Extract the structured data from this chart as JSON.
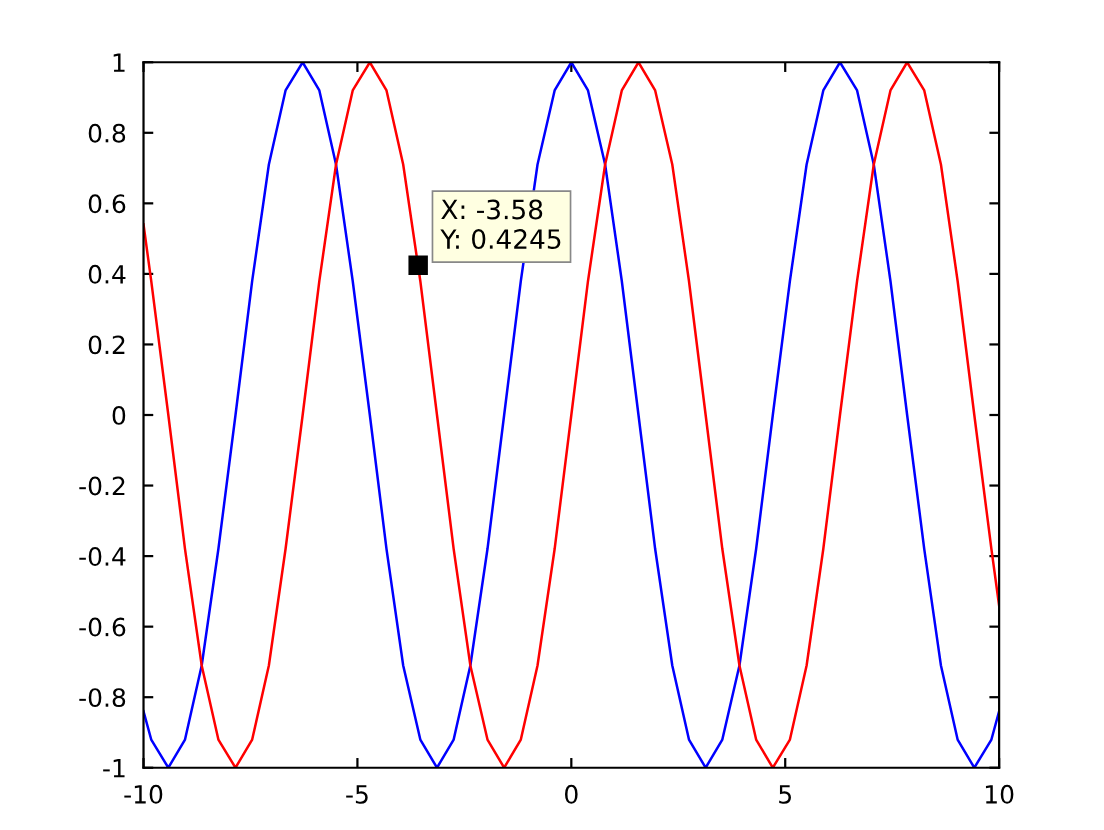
{
  "chart_data": {
    "type": "line",
    "x": [
      -10,
      -9.82,
      -9.42,
      -9.03,
      -8.64,
      -8.25,
      -7.85,
      -7.46,
      -7.07,
      -6.68,
      -6.28,
      -5.89,
      -5.5,
      -5.11,
      -4.71,
      -4.32,
      -3.93,
      -3.53,
      -3.14,
      -2.75,
      -2.36,
      -1.96,
      -1.57,
      -1.18,
      -0.79,
      -0.39,
      0,
      0.39,
      0.79,
      1.18,
      1.57,
      1.96,
      2.36,
      2.75,
      3.14,
      3.53,
      3.93,
      4.32,
      4.71,
      5.11,
      5.5,
      5.89,
      6.28,
      6.68,
      7.07,
      7.46,
      7.85,
      8.25,
      8.64,
      9.03,
      9.42,
      9.82,
      10
    ],
    "series": [
      {
        "color": "#0000ff",
        "values": [
          -0.84,
          -0.92,
          -1,
          -0.92,
          -0.71,
          -0.38,
          0,
          0.38,
          0.71,
          0.92,
          1,
          0.92,
          0.71,
          0.38,
          0,
          -0.38,
          -0.71,
          -0.92,
          -1,
          -0.92,
          -0.71,
          -0.38,
          0,
          0.38,
          0.71,
          0.92,
          1,
          0.92,
          0.71,
          0.38,
          0,
          -0.38,
          -0.71,
          -0.92,
          -1,
          -0.92,
          -0.71,
          -0.38,
          0,
          0.38,
          0.71,
          0.92,
          1,
          0.92,
          0.71,
          0.38,
          0,
          -0.38,
          -0.71,
          -0.92,
          -1,
          -0.92,
          -0.84
        ]
      },
      {
        "color": "#ff0000",
        "values": [
          0.54,
          0.38,
          0,
          -0.38,
          -0.71,
          -0.92,
          -1,
          -0.92,
          -0.71,
          -0.38,
          0,
          0.38,
          0.71,
          0.92,
          1,
          0.92,
          0.71,
          0.38,
          0,
          -0.38,
          -0.71,
          -0.92,
          -1,
          -0.92,
          -0.71,
          -0.38,
          0,
          0.38,
          0.71,
          0.92,
          1,
          0.92,
          0.71,
          0.38,
          0,
          -0.38,
          -0.71,
          -0.92,
          -1,
          -0.92,
          -0.71,
          -0.38,
          0,
          0.38,
          0.71,
          0.92,
          1,
          0.92,
          0.71,
          0.38,
          0,
          -0.38,
          -0.54
        ]
      }
    ],
    "xlim": [
      -10,
      10
    ],
    "xticks": [
      -10,
      -5,
      0,
      5,
      10
    ],
    "ylim": [
      -1,
      1
    ],
    "yticks": [
      -1,
      -0.8,
      -0.6,
      -0.4,
      -0.2,
      0,
      0.2,
      0.4,
      0.6,
      0.8,
      1
    ],
    "grid": false,
    "marker": "none",
    "line_style": "solid",
    "annotations": [
      {
        "text": "X: -3.58\nY: 0.4245",
        "x": -3.58,
        "y": 0.4245
      }
    ]
  }
}
